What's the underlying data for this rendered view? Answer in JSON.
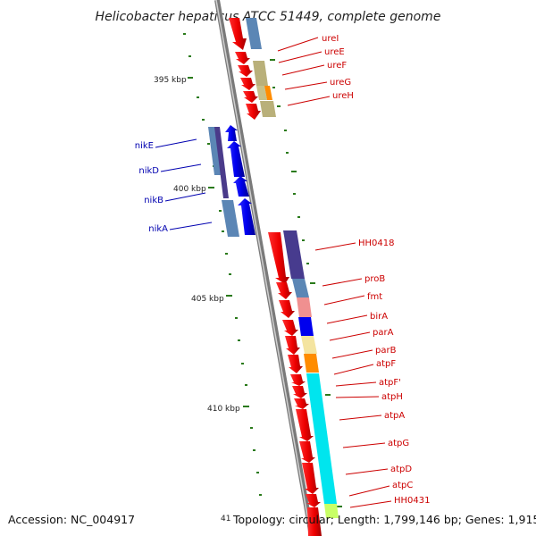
{
  "title": "Helicobacter hepaticus ATCC 51449, complete genome",
  "accession": "Accession: NC_004917",
  "partial_tick": "41",
  "topology": "Topology: circular; Length: 1,799,146 bp; Genes: 1,915",
  "ticks": [
    {
      "label": "395 kbp",
      "value": 395
    },
    {
      "label": "400 kbp",
      "value": 400
    },
    {
      "label": "405 kbp",
      "value": 405
    },
    {
      "label": "410 kbp",
      "value": 410
    }
  ],
  "genes_right": [
    {
      "label": "ureI",
      "color": "#cc0000"
    },
    {
      "label": "ureE",
      "color": "#cc0000"
    },
    {
      "label": "ureF",
      "color": "#cc0000"
    },
    {
      "label": "ureG",
      "color": "#cc0000"
    },
    {
      "label": "ureH",
      "color": "#cc0000"
    },
    {
      "label": "HH0418",
      "color": "#cc0000"
    },
    {
      "label": "proB",
      "color": "#cc0000"
    },
    {
      "label": "fmt",
      "color": "#cc0000"
    },
    {
      "label": "birA",
      "color": "#cc0000"
    },
    {
      "label": "parA",
      "color": "#cc0000"
    },
    {
      "label": "parB",
      "color": "#cc0000"
    },
    {
      "label": "atpF",
      "color": "#cc0000"
    },
    {
      "label": "atpF'",
      "color": "#cc0000"
    },
    {
      "label": "atpH",
      "color": "#cc0000"
    },
    {
      "label": "atpA",
      "color": "#cc0000"
    },
    {
      "label": "atpG",
      "color": "#cc0000"
    },
    {
      "label": "atpD",
      "color": "#cc0000"
    },
    {
      "label": "atpC",
      "color": "#cc0000"
    },
    {
      "label": "HH0431",
      "color": "#cc0000"
    }
  ],
  "genes_left": [
    {
      "label": "nikE",
      "color": "#0000b0"
    },
    {
      "label": "nikD",
      "color": "#0000b0"
    },
    {
      "label": "nikB",
      "color": "#0000b0"
    },
    {
      "label": "nikA",
      "color": "#0000b0"
    }
  ],
  "colors": {
    "forward_gene": "#ee0000",
    "reverse_gene": "#0000ee",
    "backbone": "#888888",
    "tick_mark": "#2a7a1a"
  }
}
